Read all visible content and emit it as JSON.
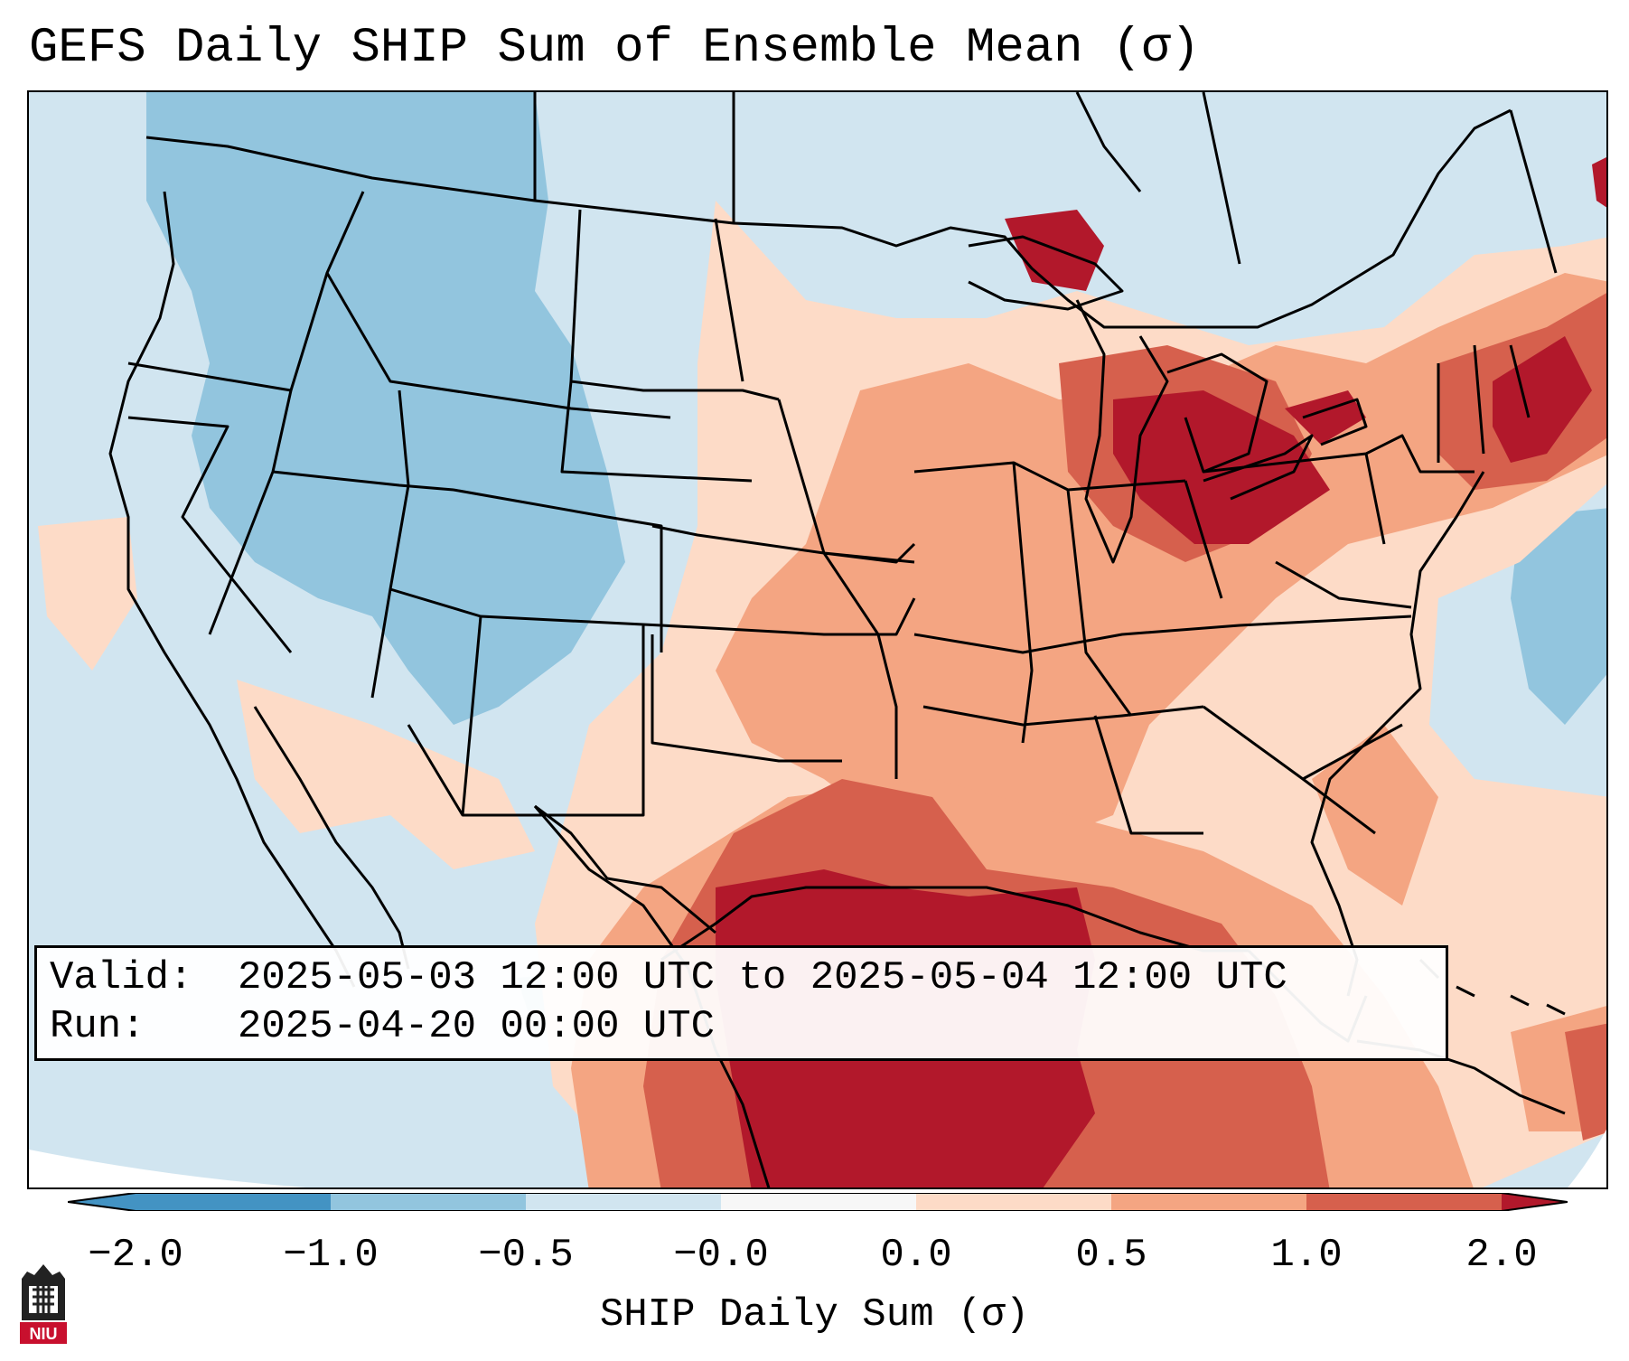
{
  "title": "GEFS Daily SHIP Sum of Ensemble Mean (σ)",
  "info": {
    "valid_label": "Valid:",
    "valid_value": "2025-05-03 12:00 UTC to 2025-05-04 12:00 UTC",
    "run_label": "Run:",
    "run_value": "2025-04-20 00:00 UTC"
  },
  "colorbar": {
    "label": "SHIP Daily Sum (σ)",
    "ticks": [
      "−2.0",
      "−1.0",
      "−0.5",
      "−0.0",
      "0.0",
      "0.5",
      "1.0",
      "2.0"
    ],
    "colors": [
      "#4393c3",
      "#92c5de",
      "#d1e5f0",
      "#f7f7f7",
      "#fddbc7",
      "#f4a582",
      "#d6604d",
      "#b2182b"
    ],
    "extend": "both"
  },
  "legend": {
    "colors": {
      "strong_negative": "#4393c3",
      "negative": "#92c5de",
      "weak_negative": "#d1e5f0",
      "weak_positive": "#fddbc7",
      "positive": "#f4a582",
      "strong_positive": "#d6604d",
      "very_strong_positive": "#b2182b"
    }
  },
  "logo": {
    "text": "NIU"
  }
}
